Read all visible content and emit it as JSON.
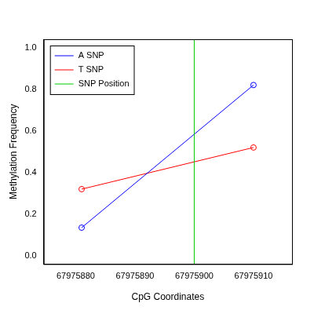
{
  "chart_data": {
    "type": "line",
    "x_label": "CpG Coordinates",
    "y_label": "Methylation Frequency",
    "xlim": [
      67975874.6,
      67975916.5
    ],
    "xticks": [
      67975880,
      67975890,
      67975900,
      67975910
    ],
    "ylim": [
      -0.04,
      1.04
    ],
    "yticks": [
      {
        "value": 0,
        "label": "0.0"
      },
      0.2,
      0.4,
      0.6,
      0.8,
      {
        "value": 1,
        "label": "1.0"
      }
    ],
    "grid": false,
    "legend": "upper left",
    "series": [
      {
        "name": "A SNP",
        "color": "#0000ff",
        "marker": "open circle",
        "line_style": "solid",
        "x": [
          67975881,
          67975910
        ],
        "values": [
          0.135,
          0.82
        ]
      },
      {
        "name": "T SNP",
        "color": "#ff0000",
        "marker": "open circle",
        "line_style": "solid",
        "x": [
          67975881,
          67975910
        ],
        "values": [
          0.32,
          0.52
        ]
      }
    ],
    "reference_line": {
      "name": "SNP Position",
      "x": 67975900,
      "color": "#00cc00"
    }
  }
}
